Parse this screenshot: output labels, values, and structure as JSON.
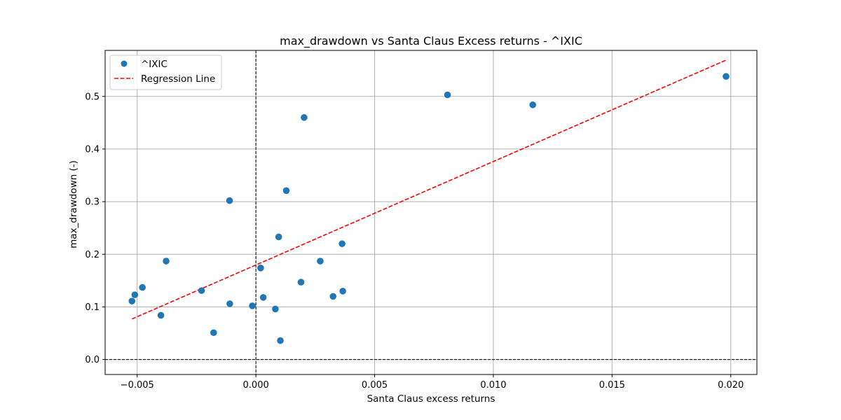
{
  "chart_data": {
    "type": "scatter",
    "title": "max_drawdown vs Santa Claus Excess returns - ^IXIC",
    "xlabel": "Santa Claus excess returns",
    "ylabel": "max_drawdown (-)",
    "xlim": [
      -0.00635,
      0.0211
    ],
    "ylim": [
      -0.0285,
      0.5875
    ],
    "xticks": [
      -0.005,
      0.0,
      0.005,
      0.01,
      0.015,
      0.02
    ],
    "xtick_labels": [
      "−0.005",
      "0.000",
      "0.005",
      "0.010",
      "0.015",
      "0.020"
    ],
    "yticks": [
      0.0,
      0.1,
      0.2,
      0.3,
      0.4,
      0.5
    ],
    "ytick_labels": [
      "0.0",
      "0.1",
      "0.2",
      "0.3",
      "0.4",
      "0.5"
    ],
    "grid": true,
    "legend_position": "top-left",
    "series": [
      {
        "name": "^IXIC",
        "kind": "scatter",
        "color": "#1f77b4",
        "points": [
          {
            "x": -0.00522,
            "y": 0.111
          },
          {
            "x": -0.0051,
            "y": 0.123
          },
          {
            "x": -0.00478,
            "y": 0.137
          },
          {
            "x": -0.004,
            "y": 0.084
          },
          {
            "x": -0.00378,
            "y": 0.187
          },
          {
            "x": -0.00229,
            "y": 0.131
          },
          {
            "x": -0.00178,
            "y": 0.051
          },
          {
            "x": -0.00111,
            "y": 0.302
          },
          {
            "x": -0.0011,
            "y": 0.106
          },
          {
            "x": -0.00015,
            "y": 0.102
          },
          {
            "x": 0.0002,
            "y": 0.174
          },
          {
            "x": 0.00031,
            "y": 0.118
          },
          {
            "x": 0.00082,
            "y": 0.096
          },
          {
            "x": 0.00096,
            "y": 0.233
          },
          {
            "x": 0.00103,
            "y": 0.036
          },
          {
            "x": 0.00128,
            "y": 0.321
          },
          {
            "x": 0.0019,
            "y": 0.147
          },
          {
            "x": 0.00203,
            "y": 0.46
          },
          {
            "x": 0.00271,
            "y": 0.187
          },
          {
            "x": 0.00325,
            "y": 0.12
          },
          {
            "x": 0.00363,
            "y": 0.22
          },
          {
            "x": 0.00366,
            "y": 0.13
          },
          {
            "x": 0.00807,
            "y": 0.503
          },
          {
            "x": 0.01166,
            "y": 0.484
          },
          {
            "x": 0.0198,
            "y": 0.538
          }
        ]
      },
      {
        "name": "Regression Line",
        "kind": "line",
        "style": "dashed",
        "color": "#ff0000",
        "points": [
          {
            "x": -0.00522,
            "y": 0.077
          },
          {
            "x": 0.0198,
            "y": 0.569
          }
        ]
      }
    ],
    "reference_lines": [
      {
        "orientation": "vertical",
        "value": 0.0,
        "style": "dashed",
        "color": "#000000"
      },
      {
        "orientation": "horizontal",
        "value": 0.0,
        "style": "dashed",
        "color": "#000000"
      }
    ]
  }
}
